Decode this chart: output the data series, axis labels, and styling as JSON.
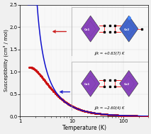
{
  "xlabel": "Temperature (K)",
  "ylabel": "Susceptibility (cm³ / mol)",
  "xlim": [
    1,
    300
  ],
  "ylim": [
    0.0,
    2.5
  ],
  "yticks": [
    0.0,
    0.5,
    1.0,
    1.5,
    2.0,
    2.5
  ],
  "xticks": [
    1,
    10,
    100
  ],
  "xticklabels": [
    "1",
    "10",
    "100"
  ],
  "line_blue_color": "#1010cc",
  "line_red_color": "#cc1010",
  "arrow_red_color": "#cc2020",
  "arrow_blue_color": "#2020cc",
  "annotation1_text": "J/k = +0.63(7) K",
  "annotation2_text": "J/k = −2.60(4) K",
  "bg_color": "#f0f0f0",
  "ax_bg_color": "#f8f8f8"
}
